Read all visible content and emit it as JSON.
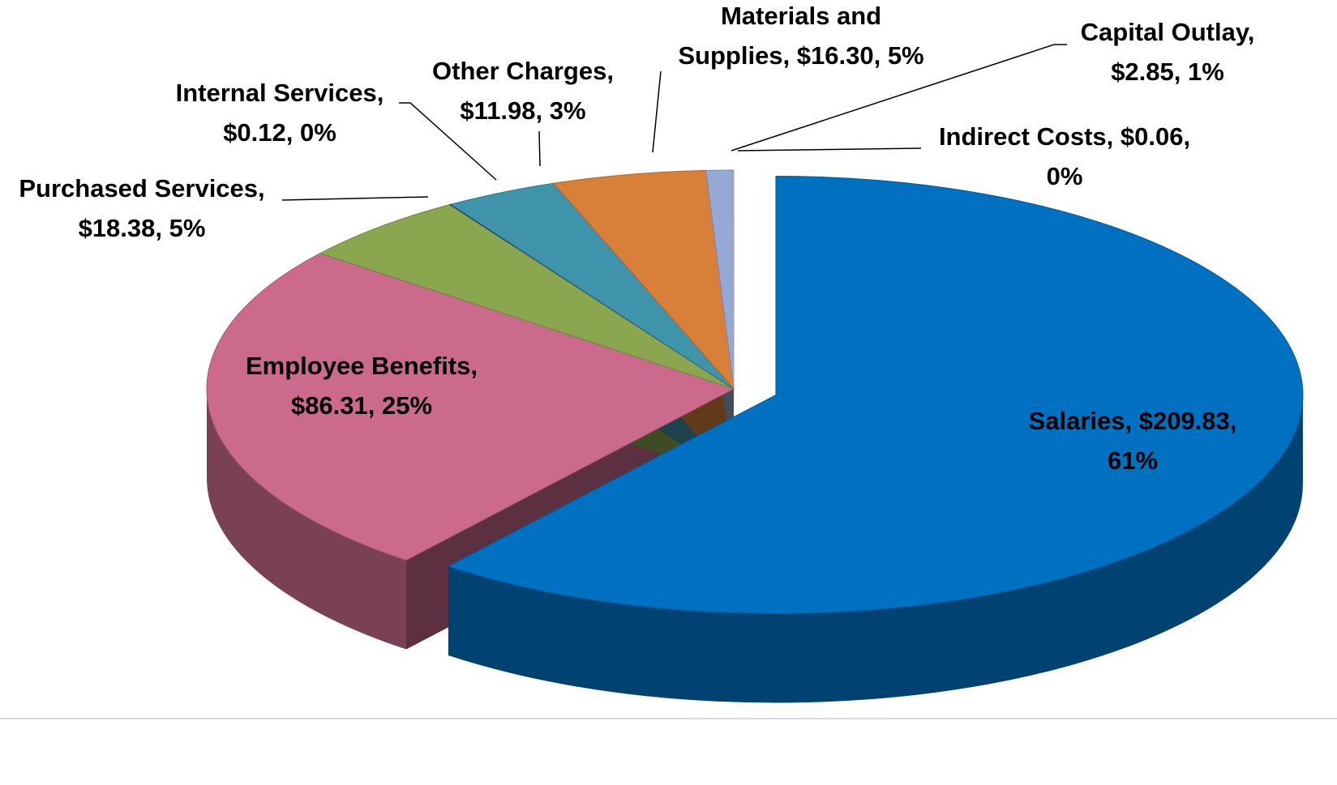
{
  "chart_data": {
    "type": "pie3d",
    "values": [
      209.83,
      86.31,
      18.38,
      0.12,
      11.98,
      16.3,
      2.85,
      0.06
    ],
    "value_labels": [
      [
        "Salaries, $209.83,",
        "61%"
      ],
      [
        "Employee Benefits,",
        "$86.31, 25%"
      ],
      [
        "Purchased Services,",
        "$18.38, 5%"
      ],
      [
        "Internal Services,",
        "$0.12, 0%"
      ],
      [
        "Other Charges,",
        "$11.98, 3%"
      ],
      [
        "Materials and",
        "Supplies, $16.30, 5%"
      ],
      [
        "Capital Outlay,",
        "$2.85, 1%"
      ],
      [
        "Indirect Costs, $0.06,",
        "0%"
      ]
    ],
    "colors": [
      "#0070c0",
      "#cc6a8e",
      "#8aa64e",
      "#1f3864",
      "#3f94ab",
      "#d8803a",
      "#95a9d4",
      "#c8ccd6"
    ],
    "exploded": [
      0
    ]
  }
}
